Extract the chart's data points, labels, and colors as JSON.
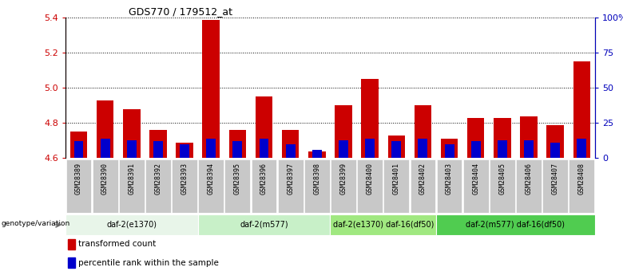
{
  "title": "GDS770 / 179512_at",
  "samples": [
    "GSM28389",
    "GSM28390",
    "GSM28391",
    "GSM28392",
    "GSM28393",
    "GSM28394",
    "GSM28395",
    "GSM28396",
    "GSM28397",
    "GSM28398",
    "GSM28399",
    "GSM28400",
    "GSM28401",
    "GSM28402",
    "GSM28403",
    "GSM28404",
    "GSM28405",
    "GSM28406",
    "GSM28407",
    "GSM28408"
  ],
  "transformed_count": [
    4.75,
    4.93,
    4.88,
    4.76,
    4.69,
    5.39,
    4.76,
    4.95,
    4.76,
    4.64,
    4.9,
    5.05,
    4.73,
    4.9,
    4.71,
    4.83,
    4.83,
    4.84,
    4.79,
    5.15
  ],
  "percentile_rank": [
    12,
    14,
    13,
    12,
    10,
    14,
    12,
    14,
    10,
    6,
    13,
    14,
    12,
    14,
    10,
    12,
    13,
    13,
    11,
    14
  ],
  "ylim_left": [
    4.6,
    5.4
  ],
  "ylim_right": [
    0,
    100
  ],
  "yticks_left": [
    4.6,
    4.8,
    5.0,
    5.2,
    5.4
  ],
  "yticks_right": [
    0,
    25,
    50,
    75,
    100
  ],
  "ytick_labels_right": [
    "0",
    "25",
    "50",
    "75",
    "100%"
  ],
  "bar_width": 0.65,
  "groups": [
    {
      "label": "daf-2(e1370)",
      "start": 0,
      "end": 4,
      "color": "#e8f5e9"
    },
    {
      "label": "daf-2(m577)",
      "start": 5,
      "end": 9,
      "color": "#c8f0c8"
    },
    {
      "label": "daf-2(e1370) daf-16(df50)",
      "start": 10,
      "end": 13,
      "color": "#a0e880"
    },
    {
      "label": "daf-2(m577) daf-16(df50)",
      "start": 14,
      "end": 19,
      "color": "#50cc50"
    }
  ],
  "red_color": "#cc0000",
  "blue_color": "#0000cc",
  "left_tick_color": "#cc0000",
  "right_tick_color": "#0000bb",
  "grid_color": "#000000",
  "genotype_label": "genotype/variation",
  "legend_items": [
    {
      "label": "transformed count",
      "color": "#cc0000"
    },
    {
      "label": "percentile rank within the sample",
      "color": "#0000cc"
    }
  ]
}
